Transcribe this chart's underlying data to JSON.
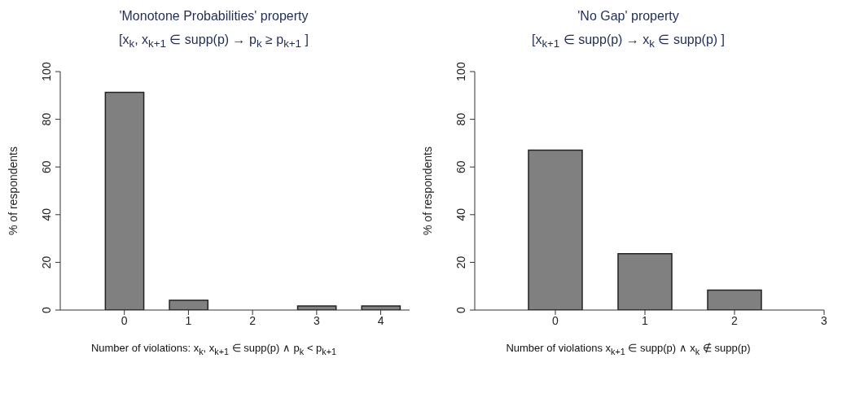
{
  "chart_data": [
    {
      "type": "bar",
      "title": "'Monotone Probabilities' property",
      "subtitle": "[x$_{k}$, x$_{k+1}$ ∈ supp(p) → p$_{k}$ ≥ p$_{k+1}$ ]",
      "xlabel": "Number of violations: x$_{k}$, x$_{k+1}$ ∈ supp(p) ∧ p$_{k}$ < p$_{k+1}$",
      "ylabel": "% of respondents",
      "x": [
        0,
        1,
        2,
        3,
        4
      ],
      "values": [
        91.3,
        4.1,
        0,
        1.7,
        1.7
      ],
      "color": "#808080",
      "xlim": [
        -1,
        4.45
      ],
      "xticks": [
        0,
        1,
        2,
        3,
        4
      ],
      "ylim": [
        0,
        100
      ],
      "yticks": [
        0,
        20,
        40,
        60,
        80,
        100
      ],
      "grid": false
    },
    {
      "type": "bar",
      "title": "'No Gap' property",
      "subtitle": "[x$_{k+1}$ ∈ supp(p) → x$_{k}$ ∈ supp(p) ]",
      "xlabel": "Number of violations x$_{k+1}$ ∈ supp(p) ∧ x$_{k}$ ∉ supp(p)",
      "ylabel": "% of respondents",
      "x": [
        0,
        1,
        2
      ],
      "values": [
        67.1,
        23.6,
        8.4
      ],
      "color": "#808080",
      "xlim": [
        -0.9,
        3
      ],
      "xticks": [
        0,
        1,
        2,
        3
      ],
      "ylim": [
        0,
        100
      ],
      "yticks": [
        0,
        20,
        40,
        60,
        80,
        100
      ],
      "grid": false
    }
  ]
}
